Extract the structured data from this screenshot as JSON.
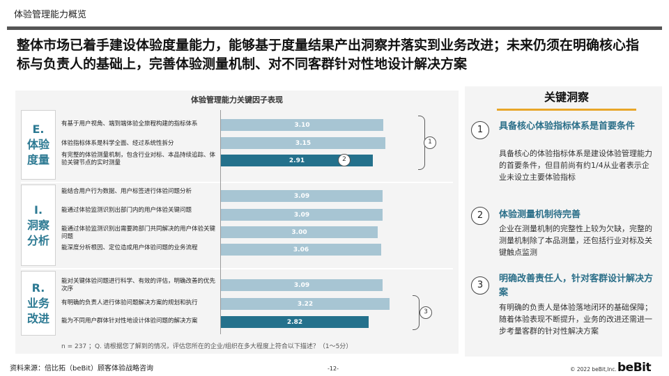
{
  "header": {
    "page_title": "体验管理能力概览",
    "headline": "整体市场已着手建设体验度量能力，能够基于度量结果产出洞察并落实到业务改进；未来仍须在明确核心指标与负责人的基础上，完善体验测量机制、对不同客群针对性地设计解决方案"
  },
  "chart": {
    "title": "体验管理能力关键因子表现",
    "footnote": "n = 237 ；Q. 请根据您了解到的情况，评估您所在的企业/组织在多大程度上符合以下描述？（1～5分）",
    "groups": [
      {
        "letter": "E.",
        "name1": "体验",
        "name2": "度量"
      },
      {
        "letter": "I.",
        "name1": "洞察",
        "name2": "分析"
      },
      {
        "letter": "R.",
        "name1": "业务",
        "name2": "改进"
      }
    ],
    "rows": [
      "有基于用户视角、端到端体验全旅程构建的指标体系",
      "体验指标体系是科学全面、经过系统性拆分",
      "有完整的体验测量机制，包含行业对标、本品持续追踪、体验关键节点的实时测量",
      "能结合用户行为数据、用户标签进行体验问题分析",
      "能通过体验监测识别出部门内的用户体验关键问题",
      "能通过体验监测识别出需要跨部门共同解决的用户体验关键问题",
      "能深度分析根因、定位造成用户体验问题的业务流程",
      "能对关键体验问题进行科学、有效的评估，明确改善的优先次序",
      "有明确的负责人进行体验问题解决方案的规划和执行",
      "能为不同用户群体针对性地设计体验问题的解决方案"
    ],
    "bracket_labels": [
      "1",
      "2",
      "3"
    ]
  },
  "chart_data": {
    "type": "bar",
    "orientation": "horizontal",
    "title": "体验管理能力关键因子表现",
    "categories": [
      "有基于用户视角、端到端体验全旅程构建的指标体系",
      "体验指标体系是科学全面、经过系统性拆分",
      "有完整的体验测量机制，包含行业对标、本品持续追踪、体验关键节点的实时测量",
      "能结合用户行为数据、用户标签进行体验问题分析",
      "能通过体验监测识别出部门内的用户体验关键问题",
      "能通过体验监测识别出需要跨部门共同解决的用户体验关键问题",
      "能深度分析根因、定位造成用户体验问题的业务流程",
      "能对关键体验问题进行科学、有效的评估，明确改善的优先次序",
      "有明确的负责人进行体验问题解决方案的规划和执行",
      "能为不同用户群体针对性地设计体验问题的解决方案"
    ],
    "values": [
      3.1,
      3.15,
      2.91,
      3.09,
      3.09,
      3.0,
      3.06,
      3.09,
      3.22,
      2.82
    ],
    "highlighted": [
      false,
      false,
      true,
      false,
      false,
      false,
      false,
      false,
      false,
      true
    ],
    "colors": {
      "normal": "#a7c5d3",
      "highlight": "#24718c"
    },
    "xlim": [
      0,
      4
    ]
  },
  "insights": {
    "title": "关键洞察",
    "items": [
      {
        "num": "1",
        "head": "具备核心体验指标体系是首要条件",
        "body": "具备核心的体验指标体系是建设体验管理能力的首要条件，但目前尚有约1/4从业者表示企业未设立主要体验指标"
      },
      {
        "num": "2",
        "head": "体验测量机制待完善",
        "body": "企业在测量机制的完整性上较为欠缺，完整的测量机制除了本品测量，还包括行业对标及关键触点监测"
      },
      {
        "num": "3",
        "head": "明确改善责任人，针对客群设计解决方案",
        "body": "有明确的负责人是体验落地闭环的基础保障；随着体验表现不断提升，业务的改进还需进一步考量客群的针对性解决方案"
      }
    ]
  },
  "footer": {
    "source": "资料来源：倍比拓（beBit）顾客体验战略咨询",
    "page": "-12-",
    "copyright": "© 2022 beBit,Inc.",
    "logo": "beBit"
  }
}
